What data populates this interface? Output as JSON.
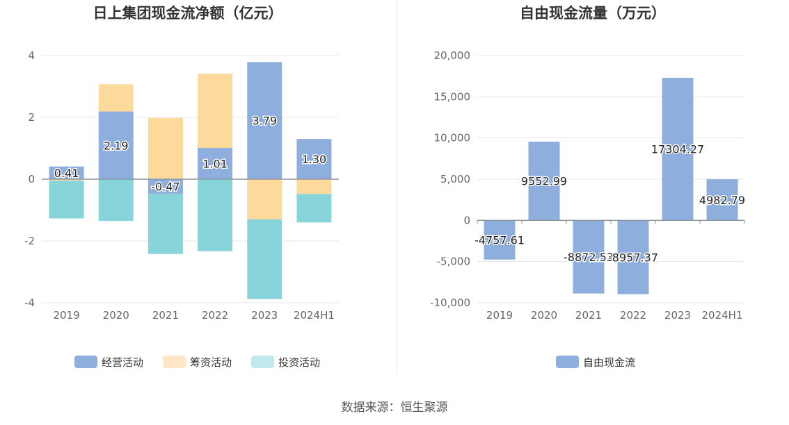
{
  "source_label": "数据来源：恒生聚源",
  "chart_data": [
    {
      "type": "bar",
      "stacked": true,
      "title": "日上集团现金流净额（亿元）",
      "categories": [
        "2019",
        "2020",
        "2021",
        "2022",
        "2023",
        "2024H1"
      ],
      "ylim": [
        -4,
        4
      ],
      "yticks": [
        4,
        2,
        0,
        -2,
        -4
      ],
      "grid": true,
      "legend_position": "bottom",
      "series": [
        {
          "name": "经营活动",
          "color": "#8eaedd",
          "legend_color": "#8eaedd",
          "values": [
            0.41,
            2.19,
            -0.47,
            1.01,
            3.79,
            1.3
          ],
          "labels": [
            "0.41",
            "2.19",
            "-0.47",
            "1.01",
            "3.79",
            "1.30"
          ]
        },
        {
          "name": "筹资活动",
          "color": "#fdd99b",
          "legend_color": "#fde7c6",
          "values": [
            -0.05,
            0.88,
            1.98,
            2.4,
            -1.3,
            -0.48
          ]
        },
        {
          "name": "投资活动",
          "color": "#87d5da",
          "legend_color": "#bfe9ec",
          "values": [
            -1.22,
            -1.35,
            -1.95,
            -2.33,
            -2.58,
            -0.92
          ]
        }
      ]
    },
    {
      "type": "bar",
      "title": "自由现金流量（万元）",
      "categories": [
        "2019",
        "2020",
        "2021",
        "2022",
        "2023",
        "2024H1"
      ],
      "ylim": [
        -10000,
        20000
      ],
      "yticks": [
        20000,
        15000,
        10000,
        5000,
        0,
        -5000,
        -10000
      ],
      "ytick_labels": [
        "20,000",
        "15,000",
        "10,000",
        "5,000",
        "0",
        "-5,000",
        "-10,000"
      ],
      "grid": true,
      "legend_position": "bottom",
      "series": [
        {
          "name": "自由现金流",
          "color": "#8eaedd",
          "legend_color": "#8eaedd",
          "values": [
            -4757.61,
            9552.99,
            -8872.53,
            -8957.37,
            17304.27,
            4982.79
          ],
          "labels": [
            "-4757.61",
            "9552.99",
            "-8872.53",
            "-8957.37",
            "17304.27",
            "4982.79"
          ]
        }
      ]
    }
  ]
}
